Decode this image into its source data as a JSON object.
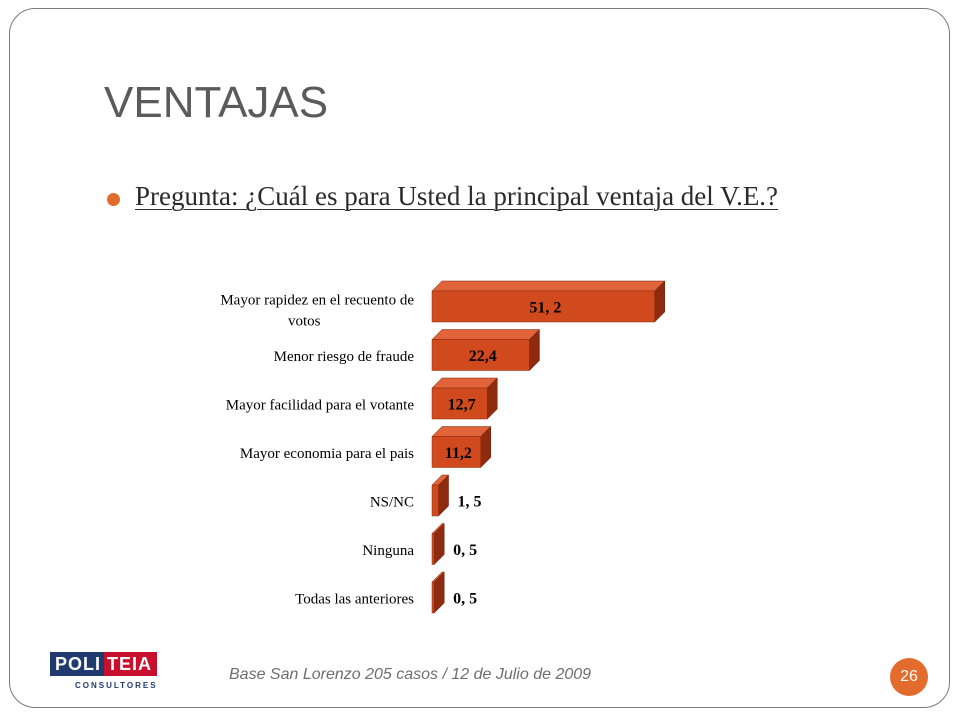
{
  "slide": {
    "title": "VENTAJAS",
    "question": "Pregunta: ¿Cuál es para Usted la principal ventaja del V.E.?",
    "footer": "Base San Lorenzo 205 casos / 12 de Julio de 2009",
    "page_number": "26"
  },
  "logo": {
    "part1": "POLI",
    "part2": "TEIA",
    "subtitle": "CONSULTORES"
  },
  "colors": {
    "bar_front": "#d04a1e",
    "bar_top": "#e0633a",
    "bar_side": "#8e2a0d",
    "accent": "#e36b2c"
  },
  "chart_data": {
    "type": "bar",
    "orientation": "horizontal",
    "categories": [
      "Mayor rapidez en el recuento de votos",
      "Menor riesgo de fraude",
      "Mayor facilidad para el votante",
      "Mayor economia para el pais",
      "NS/NC",
      "Ninguna",
      "Todas las anteriores"
    ],
    "values": [
      51.2,
      22.4,
      12.7,
      11.2,
      1.5,
      0.5,
      0.5
    ],
    "value_labels": [
      "51, 2",
      "22,4",
      "12,7",
      "11,2",
      "1, 5",
      "0, 5",
      "0, 5"
    ]
  }
}
